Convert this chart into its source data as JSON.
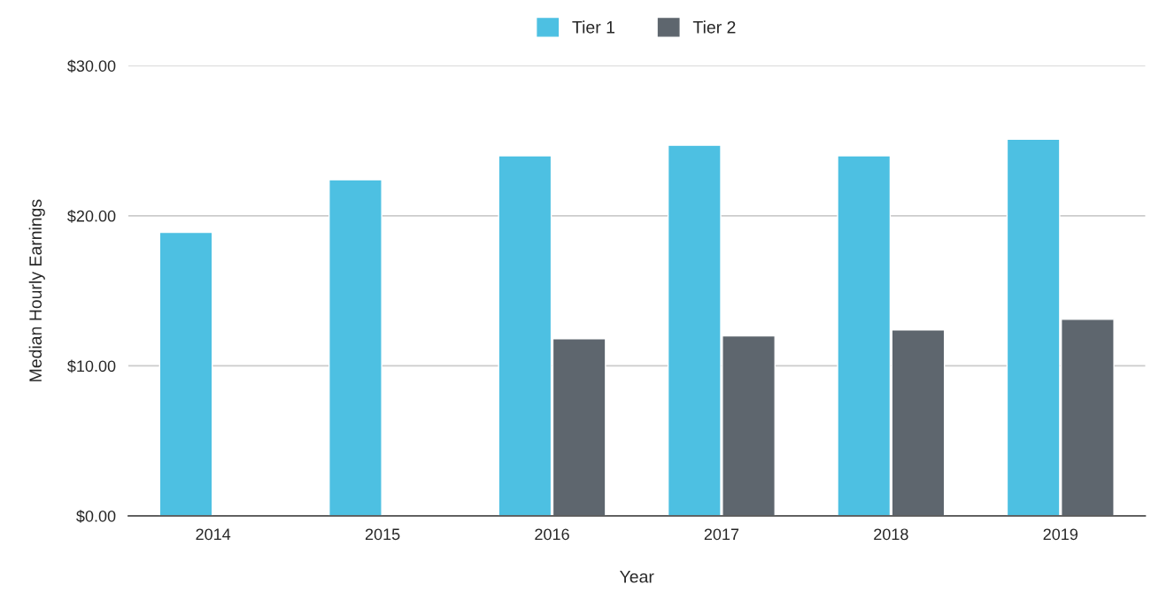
{
  "chart_data": {
    "type": "bar",
    "xlabel": "Year",
    "ylabel": "Median Hourly Earnings",
    "categories": [
      "2014",
      "2015",
      "2016",
      "2017",
      "2018",
      "2019"
    ],
    "series": [
      {
        "name": "Tier 1",
        "color": "#4dc0e2",
        "values": [
          18.9,
          22.4,
          24.0,
          24.7,
          24.0,
          25.1
        ]
      },
      {
        "name": "Tier 2",
        "color": "#5e666e",
        "values": [
          null,
          null,
          11.8,
          12.0,
          12.4,
          13.1
        ]
      }
    ],
    "ylim": [
      0,
      30
    ],
    "yticks": [
      {
        "value": 0,
        "label": "$0.00"
      },
      {
        "value": 10,
        "label": "$10.00"
      },
      {
        "value": 20,
        "label": "$20.00"
      },
      {
        "value": 30,
        "label": "$30.00"
      }
    ],
    "grid": "y",
    "legend": "top"
  }
}
